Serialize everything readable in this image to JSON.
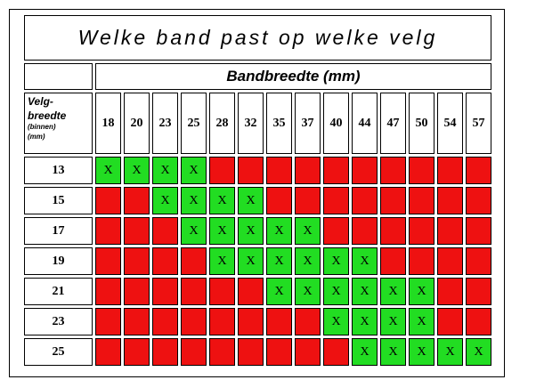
{
  "title": "Welke band past op welke velg",
  "subtitle": "Bandbreedte (mm)",
  "row_label": {
    "line1": "Velg-",
    "line2": "breedte",
    "line3": "(binnen)",
    "line4": "(mm)"
  },
  "tire_widths": [
    "18",
    "20",
    "23",
    "25",
    "28",
    "32",
    "35",
    "37",
    "40",
    "44",
    "47",
    "50",
    "54",
    "57"
  ],
  "fit_mark": "X",
  "colors": {
    "fit": "#22dd22",
    "nofit": "#ee1111"
  },
  "rows": [
    {
      "rim": "13",
      "fits": [
        true,
        true,
        true,
        true,
        false,
        false,
        false,
        false,
        false,
        false,
        false,
        false,
        false,
        false
      ]
    },
    {
      "rim": "15",
      "fits": [
        false,
        false,
        true,
        true,
        true,
        true,
        false,
        false,
        false,
        false,
        false,
        false,
        false,
        false
      ]
    },
    {
      "rim": "17",
      "fits": [
        false,
        false,
        false,
        true,
        true,
        true,
        true,
        true,
        false,
        false,
        false,
        false,
        false,
        false
      ]
    },
    {
      "rim": "19",
      "fits": [
        false,
        false,
        false,
        false,
        true,
        true,
        true,
        true,
        true,
        true,
        false,
        false,
        false,
        false
      ]
    },
    {
      "rim": "21",
      "fits": [
        false,
        false,
        false,
        false,
        false,
        false,
        true,
        true,
        true,
        true,
        true,
        true,
        false,
        false
      ]
    },
    {
      "rim": "23",
      "fits": [
        false,
        false,
        false,
        false,
        false,
        false,
        false,
        false,
        true,
        true,
        true,
        true,
        false,
        false
      ]
    },
    {
      "rim": "25",
      "fits": [
        false,
        false,
        false,
        false,
        false,
        false,
        false,
        false,
        false,
        true,
        true,
        true,
        true,
        true
      ]
    }
  ]
}
